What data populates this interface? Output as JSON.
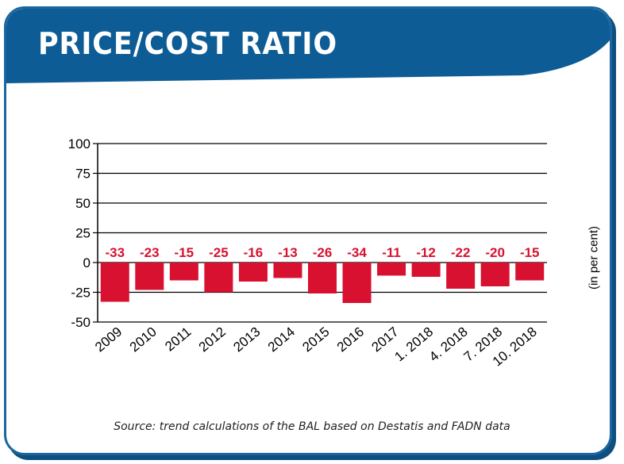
{
  "header": {
    "title": "PRICE/COST RATIO"
  },
  "colors": {
    "header_blue": "#0e5c95",
    "frame_blue": "#1b66a0",
    "bar_red": "#d7112f",
    "label_red": "#d7112f"
  },
  "chart_data": {
    "type": "bar",
    "categories": [
      "2009",
      "2010",
      "2011",
      "2012",
      "2013",
      "2014",
      "2015",
      "2016",
      "2017",
      "1. 2018",
      "4. 2018",
      "7. 2018",
      "10. 2018"
    ],
    "values": [
      -33,
      -23,
      -15,
      -25,
      -16,
      -13,
      -26,
      -34,
      -11,
      -12,
      -22,
      -20,
      -15
    ],
    "data_labels": [
      "-33",
      "-23",
      "-15",
      "-25",
      "-16",
      "-13",
      "-26",
      "-34",
      "-11",
      "-12",
      "-22",
      "-20",
      "-15"
    ],
    "yticks": [
      "100",
      "75",
      "50",
      "25",
      "0",
      "-25",
      "-50"
    ],
    "ylim": [
      -50,
      100
    ],
    "ylabel": "(in per cent)",
    "grid": true,
    "source": "Source: trend calculations of the BAL based on Destatis and FADN data"
  }
}
